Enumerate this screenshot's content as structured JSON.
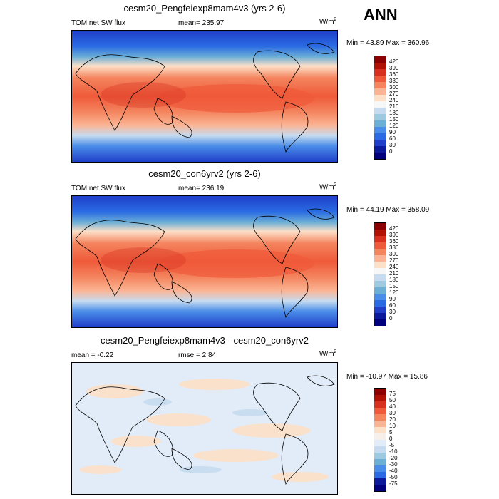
{
  "annotation": "ANN",
  "panels": [
    {
      "title": "cesm20_Pengfeiexp8mam4v3 (yrs 2-6)",
      "left_label": "TOM net SW flux",
      "center_label": "mean= 235.97",
      "units": "W/m",
      "units_sup": "2",
      "minmax": "Min =  43.89 Max = 360.96",
      "colorbar_labels": [
        "420",
        "390",
        "360",
        "330",
        "300",
        "270",
        "240",
        "210",
        "180",
        "150",
        "120",
        "90",
        "60",
        "30",
        "0"
      ]
    },
    {
      "title": "cesm20_con6yrv2 (yrs 2-6)",
      "left_label": "TOM net SW flux",
      "center_label": "mean= 236.19",
      "units": "W/m",
      "units_sup": "2",
      "minmax": "Min =  44.19 Max = 358.09",
      "colorbar_labels": [
        "420",
        "390",
        "360",
        "330",
        "300",
        "270",
        "240",
        "210",
        "180",
        "150",
        "120",
        "90",
        "60",
        "30",
        "0"
      ]
    },
    {
      "title": "cesm20_Pengfeiexp8mam4v3 - cesm20_con6yrv2",
      "left_label": "mean =  -0.22",
      "center_label": "rmse =   2.84",
      "units": "W/m",
      "units_sup": "2",
      "minmax": "Min = -10.97 Max =  15.86",
      "colorbar_labels": [
        "75",
        "50",
        "40",
        "30",
        "20",
        "10",
        "5",
        "0",
        "-5",
        "-10",
        "-20",
        "-30",
        "-40",
        "-50",
        "-75"
      ]
    }
  ],
  "colors": {
    "abs_scale": [
      "#8b0000",
      "#b01205",
      "#d7301f",
      "#ef5a3a",
      "#f4855f",
      "#fbb493",
      "#fde0c8",
      "#f7f7f7",
      "#c6dbef",
      "#9ecae1",
      "#6baed6",
      "#4a8de8",
      "#2a6be3",
      "#1f3fc9",
      "#0a1a9a",
      "#00007f"
    ],
    "diff_scale": [
      "#8b0000",
      "#b01205",
      "#d7301f",
      "#ef5a3a",
      "#f4855f",
      "#fbb493",
      "#fde0c8",
      "#f7f0ea",
      "#e2ecf9",
      "#c6dbef",
      "#9ecae1",
      "#6baed6",
      "#4a8de8",
      "#2a6be3",
      "#0a1a9a",
      "#00007f"
    ]
  }
}
